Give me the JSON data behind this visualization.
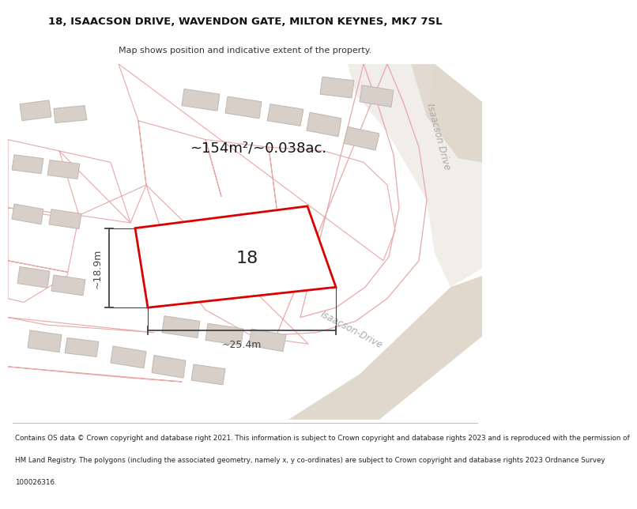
{
  "title": "18, ISAACSON DRIVE, WAVENDON GATE, MILTON KEYNES, MK7 7SL",
  "subtitle": "Map shows position and indicative extent of the property.",
  "area_text": "~154m²/~0.038ac.",
  "property_number": "18",
  "dim_width": "~25.4m",
  "dim_height": "~18.9m",
  "footer_lines": [
    "Contains OS data © Crown copyright and database right 2021. This information is subject to Crown copyright and database rights 2023 and is reproduced with the permission of",
    "HM Land Registry. The polygons (including the associated geometry, namely x, y co-ordinates) are subject to Crown copyright and database rights 2023 Ordnance Survey",
    "100026316."
  ],
  "map_bg": "#f0eeeb",
  "road_fill": "#e8e2d8",
  "building_fill": "#d8d0c8",
  "building_edge": "#c0b8b0",
  "red_parcel_fill": "#fce8e8",
  "red_parcel_edge": "#cc2222",
  "property_fill": "#ffffff",
  "property_edge": "#dd0000",
  "dim_color": "#444444",
  "street_color": "#aaaaaa",
  "parcel_line_color": "#e8a8a8"
}
